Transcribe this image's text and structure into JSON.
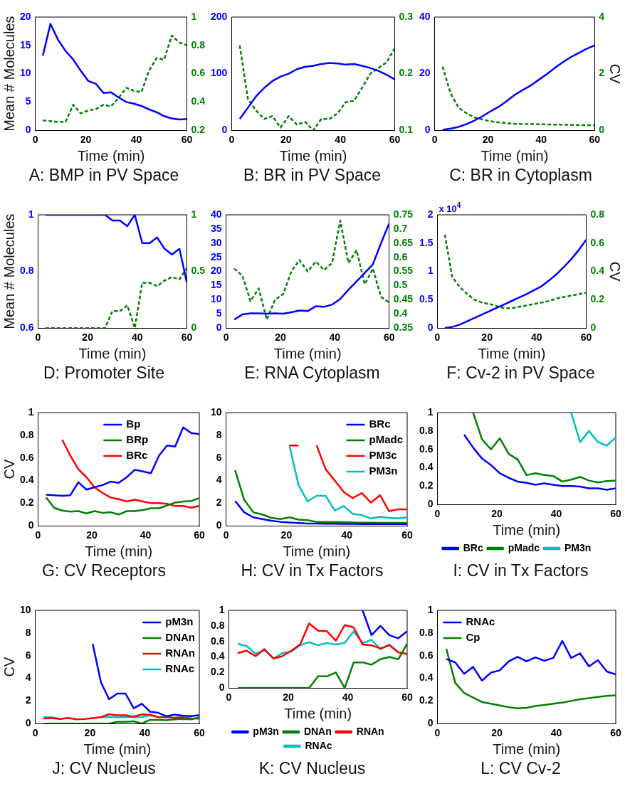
{
  "chart_data": [
    {
      "type": "line",
      "title": "A: BMP in PV Space",
      "xlabel": "Time (min)",
      "ylabel": "Mean # Molecules",
      "x": [
        3,
        6,
        9,
        12,
        15,
        18,
        21,
        24,
        27,
        30,
        33,
        36,
        39,
        42,
        45,
        48,
        51,
        54,
        57,
        60
      ],
      "xlim": [
        0,
        60
      ],
      "xticks": [
        0,
        20,
        40,
        60
      ],
      "ylim": [
        0,
        20
      ],
      "yticks": [
        0,
        5,
        10,
        15,
        20
      ],
      "y2lim": [
        0.2,
        1
      ],
      "y2ticks": [
        0.2,
        0.4,
        0.6,
        0.8,
        1
      ],
      "grid": false,
      "legend": false,
      "series": [
        {
          "color": "#0000ff",
          "values": [
            13.2,
            18.8,
            16,
            14,
            12.5,
            10.5,
            8.7,
            8.2,
            6.6,
            6.7,
            5.8,
            5,
            4.7,
            4.3,
            3.7,
            3.2,
            2.5,
            2.1,
            1.9,
            2.0
          ]
        },
        {
          "color": "#008000",
          "axis": "y2",
          "line_style": "dashed",
          "values": [
            0.27,
            0.265,
            0.26,
            0.26,
            0.38,
            0.32,
            0.34,
            0.35,
            0.38,
            0.37,
            0.43,
            0.5,
            0.48,
            0.47,
            0.62,
            0.71,
            0.7,
            0.87,
            0.82,
            0.8
          ]
        }
      ]
    },
    {
      "type": "line",
      "title": "B: BR  in PV Space",
      "xlabel": "Time (min)",
      "x": [
        3,
        6,
        9,
        12,
        15,
        18,
        21,
        24,
        27,
        30,
        33,
        36,
        39,
        42,
        45,
        48,
        51,
        54,
        57,
        60
      ],
      "xlim": [
        0,
        60
      ],
      "xticks": [
        0,
        20,
        40,
        60
      ],
      "ylim": [
        0,
        200
      ],
      "yticks": [
        0,
        100,
        200
      ],
      "y2lim": [
        0.1,
        0.3
      ],
      "y2ticks": [
        0.1,
        0.2,
        0.3
      ],
      "grid": false,
      "legend": false,
      "series": [
        {
          "color": "#0000ff",
          "values": [
            20,
            40,
            60,
            75,
            87,
            95,
            100,
            108,
            112,
            114,
            117,
            119,
            118,
            116,
            117,
            114,
            110,
            105,
            98,
            90
          ]
        },
        {
          "color": "#008000",
          "axis": "y2",
          "line_style": "dashed",
          "values": [
            0.25,
            0.155,
            0.135,
            0.12,
            0.125,
            0.105,
            0.125,
            0.11,
            0.115,
            0.1,
            0.12,
            0.12,
            0.13,
            0.15,
            0.152,
            0.175,
            0.2,
            0.21,
            0.22,
            0.245
          ]
        }
      ]
    },
    {
      "type": "line",
      "title": "C: BR  in Cytoplasm",
      "xlabel": "Time (min)",
      "y2label": "CV",
      "x": [
        3,
        6,
        9,
        12,
        15,
        18,
        21,
        24,
        27,
        30,
        33,
        36,
        39,
        42,
        45,
        48,
        51,
        54,
        57,
        60
      ],
      "xlim": [
        0,
        60
      ],
      "xticks": [
        0,
        20,
        40,
        60
      ],
      "ylim": [
        0,
        40
      ],
      "yticks": [
        0,
        20,
        40
      ],
      "y2lim": [
        0,
        4
      ],
      "y2ticks": [
        0,
        2,
        4
      ],
      "grid": false,
      "legend": false,
      "series": [
        {
          "color": "#0000ff",
          "values": [
            0.2,
            0.6,
            1.2,
            2.2,
            3.5,
            5,
            6.7,
            8.3,
            10.3,
            12.5,
            14.2,
            15.8,
            17.8,
            19.8,
            22,
            24,
            25.8,
            27.3,
            28.8,
            30
          ]
        },
        {
          "color": "#008000",
          "axis": "y2",
          "line_style": "dashed",
          "values": [
            2.25,
            1.3,
            0.8,
            0.6,
            0.45,
            0.38,
            0.32,
            0.28,
            0.25,
            0.23,
            0.22,
            0.22,
            0.21,
            0.21,
            0.2,
            0.2,
            0.19,
            0.19,
            0.18,
            0.18
          ]
        }
      ]
    },
    {
      "type": "line",
      "title": "D: Promoter Site",
      "xlabel": "Time (min)",
      "ylabel": "Mean # Molecules",
      "x": [
        3,
        6,
        9,
        12,
        15,
        18,
        21,
        24,
        27,
        30,
        33,
        36,
        39,
        42,
        45,
        48,
        51,
        54,
        57,
        60
      ],
      "xlim": [
        0,
        60
      ],
      "xticks": [
        0,
        20,
        40,
        60
      ],
      "ylim": [
        0.6,
        1
      ],
      "yticks": [
        0.6,
        0.8,
        1
      ],
      "y2lim": [
        0,
        1
      ],
      "y2ticks": [
        0,
        0.5,
        1
      ],
      "grid": false,
      "legend": false,
      "series": [
        {
          "color": "#0000ff",
          "values": [
            1,
            1,
            1,
            1,
            1,
            1,
            1,
            1,
            1,
            0.98,
            0.98,
            0.96,
            1,
            0.9,
            0.9,
            0.92,
            0.88,
            0.86,
            0.88,
            0.76
          ]
        },
        {
          "color": "#008000",
          "axis": "y2",
          "line_style": "dashed",
          "values": [
            0,
            0,
            0,
            0,
            0,
            0,
            0,
            0,
            0,
            0.15,
            0.15,
            0.2,
            0,
            0.4,
            0.4,
            0.37,
            0.42,
            0.45,
            0.43,
            0.53
          ]
        }
      ]
    },
    {
      "type": "line",
      "title": "E: RNA Cytoplasm",
      "xlabel": "Time (min)",
      "x": [
        3,
        6,
        9,
        12,
        15,
        18,
        21,
        24,
        27,
        30,
        33,
        36,
        39,
        42,
        45,
        48,
        51,
        54,
        57,
        60
      ],
      "xlim": [
        0,
        60
      ],
      "xticks": [
        0,
        20,
        40,
        60
      ],
      "ylim": [
        0,
        40
      ],
      "yticks": [
        0,
        5,
        10,
        15,
        20,
        25,
        30,
        35,
        40
      ],
      "y2lim": [
        0.35,
        0.75
      ],
      "y2ticks": [
        0.35,
        0.4,
        0.45,
        0.5,
        0.55,
        0.6,
        0.65,
        0.7,
        0.75
      ],
      "grid": false,
      "legend": false,
      "series": [
        {
          "color": "#0000ff",
          "values": [
            3,
            4.8,
            5.2,
            5.2,
            5.1,
            5.2,
            5.1,
            5.6,
            6.2,
            6,
            7.7,
            7.5,
            8.3,
            10.3,
            13.5,
            16.5,
            19.5,
            22.5,
            30,
            37
          ]
        },
        {
          "color": "#008000",
          "axis": "y2",
          "line_style": "dashed",
          "values": [
            0.56,
            0.535,
            0.445,
            0.49,
            0.38,
            0.45,
            0.47,
            0.55,
            0.59,
            0.55,
            0.585,
            0.555,
            0.58,
            0.73,
            0.58,
            0.625,
            0.505,
            0.56,
            0.46,
            0.44
          ]
        }
      ]
    },
    {
      "type": "line",
      "title": "F: Cv-2 in PV Space",
      "xlabel": "Time (min)",
      "y2label": "CV",
      "annotations": [
        "x 10$^{4}$"
      ],
      "x": [
        3,
        6,
        9,
        12,
        15,
        18,
        21,
        24,
        27,
        30,
        33,
        36,
        39,
        42,
        45,
        48,
        51,
        54,
        57,
        60
      ],
      "xlim": [
        0,
        60
      ],
      "xticks": [
        0,
        20,
        40,
        60
      ],
      "ylim": [
        0,
        2
      ],
      "yticks": [
        0,
        0.5,
        1,
        1.5,
        2
      ],
      "y2lim": [
        0,
        0.8
      ],
      "y2ticks": [
        0,
        0.2,
        0.4,
        0.6,
        0.8
      ],
      "grid": false,
      "legend": false,
      "series": [
        {
          "color": "#0000ff",
          "values": [
            0,
            0.02,
            0.06,
            0.12,
            0.18,
            0.24,
            0.3,
            0.36,
            0.42,
            0.48,
            0.54,
            0.6,
            0.67,
            0.74,
            0.84,
            0.95,
            1.08,
            1.22,
            1.38,
            1.56
          ]
        },
        {
          "color": "#008000",
          "axis": "y2",
          "line_style": "dashed",
          "values": [
            0.66,
            0.36,
            0.29,
            0.24,
            0.2,
            0.18,
            0.17,
            0.155,
            0.14,
            0.14,
            0.15,
            0.16,
            0.17,
            0.18,
            0.19,
            0.21,
            0.22,
            0.23,
            0.24,
            0.25
          ]
        }
      ]
    },
    {
      "type": "line",
      "title": "G: CV Receptors",
      "xlabel": "Time (min)",
      "ylabel": "CV",
      "x": [
        3,
        6,
        9,
        12,
        15,
        18,
        21,
        24,
        27,
        30,
        33,
        36,
        39,
        42,
        45,
        48,
        51,
        54,
        57,
        60
      ],
      "xlim": [
        0,
        60
      ],
      "xticks": [
        0,
        20,
        40,
        60
      ],
      "ylim": [
        0,
        1
      ],
      "yticks": [
        0,
        0.2,
        0.4,
        0.6,
        0.8,
        1
      ],
      "grid": false,
      "legend": "top",
      "series": [
        {
          "name": "Bp",
          "color": "#0000ff",
          "values": [
            0.275,
            0.27,
            0.265,
            0.27,
            0.385,
            0.32,
            0.34,
            0.36,
            0.39,
            0.38,
            0.43,
            0.495,
            0.48,
            0.465,
            0.62,
            0.71,
            0.7,
            0.87,
            0.82,
            0.81
          ]
        },
        {
          "name": "BRp",
          "color": "#008000",
          "values": [
            0.25,
            0.16,
            0.135,
            0.125,
            0.13,
            0.11,
            0.13,
            0.115,
            0.12,
            0.1,
            0.13,
            0.13,
            0.14,
            0.155,
            0.155,
            0.18,
            0.205,
            0.215,
            0.22,
            0.245
          ]
        },
        {
          "name": "BRc",
          "color": "#ff0000",
          "values": [
            null,
            null,
            0.76,
            0.62,
            0.5,
            0.43,
            0.34,
            0.29,
            0.25,
            0.235,
            0.215,
            0.23,
            0.215,
            0.2,
            0.2,
            0.195,
            0.175,
            0.175,
            0.16,
            0.175
          ]
        }
      ]
    },
    {
      "type": "line",
      "title": "H: CV in Tx Factors",
      "xlabel": "Time (min)",
      "x": [
        3,
        6,
        9,
        12,
        15,
        18,
        21,
        24,
        27,
        30,
        33,
        36,
        39,
        42,
        45,
        48,
        51,
        54,
        57,
        60
      ],
      "xlim": [
        0,
        60
      ],
      "xticks": [
        0,
        20,
        40,
        60
      ],
      "ylim": [
        0,
        10
      ],
      "yticks": [
        0,
        2,
        4,
        6,
        8,
        10
      ],
      "grid": false,
      "legend": "top right",
      "series": [
        {
          "name": "BRc",
          "color": "#0000ff",
          "values": [
            2.2,
            1.2,
            0.75,
            0.6,
            0.45,
            0.35,
            0.3,
            0.25,
            0.2,
            0.2,
            0.18,
            0.18,
            0.17,
            0.17,
            0.16,
            0.15,
            0.15,
            0.15,
            0.15,
            0.15
          ]
        },
        {
          "name": "pMadc",
          "color": "#008000",
          "values": [
            4.9,
            2.3,
            1.2,
            1.0,
            0.7,
            0.6,
            0.75,
            0.55,
            0.5,
            0.35,
            0.35,
            0.35,
            0.32,
            0.3,
            0.28,
            0.28,
            0.27,
            0.26,
            0.26,
            0.25
          ]
        },
        {
          "name": "PM3c",
          "color": "#ff0000",
          "values": [
            null,
            null,
            null,
            null,
            null,
            null,
            7.1,
            7.1,
            null,
            7.1,
            5,
            4,
            3,
            2.45,
            2.9,
            2.05,
            2.7,
            1.3,
            1.45,
            1.45
          ]
        },
        {
          "name": "PM3n",
          "color": "#00bfbf",
          "values": [
            null,
            null,
            null,
            null,
            null,
            null,
            7.1,
            3.6,
            2.15,
            2.65,
            2.65,
            1.35,
            1.75,
            1.05,
            0.95,
            0.65,
            0.8,
            0.7,
            0.65,
            0.75
          ]
        }
      ]
    },
    {
      "type": "line",
      "title": "I: CV in Tx Factors",
      "xlabel": "Time (min)",
      "xlim": [
        0,
        60
      ],
      "xticks": [
        0,
        20,
        40,
        60
      ],
      "ylim": [
        0,
        1
      ],
      "yticks": [
        0,
        0.2,
        0.4,
        0.6,
        0.8,
        1
      ],
      "grid": false,
      "legend": "bottom",
      "series": [
        {
          "name": "BRc",
          "color": "#0000ff",
          "x": [
            9,
            12,
            15,
            18,
            21,
            24,
            27,
            30,
            33,
            36,
            39,
            42,
            45,
            48,
            51,
            54,
            57,
            60
          ],
          "values": [
            0.76,
            0.62,
            0.5,
            0.43,
            0.34,
            0.29,
            0.25,
            0.235,
            0.215,
            0.23,
            0.215,
            0.2,
            0.2,
            0.195,
            0.175,
            0.175,
            0.16,
            0.175
          ]
        },
        {
          "name": "pMadc",
          "color": "#008000",
          "x": [
            12,
            15,
            18,
            21,
            24,
            27,
            30,
            33,
            36,
            39,
            42,
            45,
            48,
            51,
            54,
            57,
            60
          ],
          "values": [
            1,
            0.71,
            0.6,
            0.72,
            0.55,
            0.49,
            0.32,
            0.34,
            0.32,
            0.31,
            0.25,
            0.27,
            0.3,
            0.26,
            0.24,
            0.255,
            0.26
          ]
        },
        {
          "name": "PM3n",
          "color": "#00bfbf",
          "x": [
            45,
            48,
            51,
            54,
            57,
            60
          ],
          "values": [
            1,
            0.68,
            0.8,
            0.68,
            0.64,
            0.73
          ]
        }
      ]
    },
    {
      "type": "line",
      "title": "J: CV Nucleus",
      "xlabel": "Time (min)",
      "ylabel": "CV",
      "x": [
        3,
        6,
        9,
        12,
        15,
        18,
        21,
        24,
        27,
        30,
        33,
        36,
        39,
        42,
        45,
        48,
        51,
        54,
        57,
        60
      ],
      "xlim": [
        0,
        60
      ],
      "xticks": [
        0,
        20,
        40,
        60
      ],
      "ylim": [
        0,
        10
      ],
      "yticks": [
        0,
        2,
        4,
        6,
        8,
        10
      ],
      "grid": false,
      "legend": "top right",
      "series": [
        {
          "name": "pM3n",
          "color": "#0000ff",
          "values": [
            null,
            null,
            null,
            null,
            null,
            null,
            7.05,
            3.65,
            2.15,
            2.65,
            2.65,
            1.35,
            1.75,
            1.05,
            0.95,
            0.65,
            0.8,
            0.7,
            0.65,
            0.75
          ]
        },
        {
          "name": "DNAn",
          "color": "#008000",
          "values": [
            0,
            0,
            0,
            0,
            0,
            0,
            0,
            0,
            0,
            0.15,
            0.15,
            0.2,
            0,
            0.33,
            0.33,
            0.3,
            0.37,
            0.4,
            0.37,
            0.57
          ]
        },
        {
          "name": "RNAn",
          "color": "#ff0000",
          "values": [
            0.45,
            0.48,
            0.41,
            0.5,
            0.38,
            0.41,
            0.48,
            0.56,
            0.83,
            0.74,
            0.73,
            0.61,
            0.81,
            0.78,
            0.56,
            0.55,
            0.51,
            0.55,
            0.46,
            0.44
          ]
        },
        {
          "name": "RNAc",
          "color": "#00bfbf",
          "values": [
            0.57,
            0.54,
            0.44,
            null,
            null,
            null,
            null,
            0.55,
            0.59,
            0.55,
            0.58,
            0.56,
            0.58,
            0.73,
            0.58,
            0.62,
            0.5,
            0.56,
            null,
            null
          ]
        }
      ]
    },
    {
      "type": "line",
      "title": "K: CV Nucleus",
      "xlabel": "Time (min)",
      "x": [
        3,
        6,
        9,
        12,
        15,
        18,
        21,
        24,
        27,
        30,
        33,
        36,
        39,
        42,
        45,
        48,
        51,
        54,
        57,
        60
      ],
      "xlim": [
        0,
        60
      ],
      "xticks": [
        0,
        20,
        40,
        60
      ],
      "ylim": [
        0,
        1
      ],
      "yticks": [
        0,
        0.2,
        0.4,
        0.6,
        0.8,
        1
      ],
      "grid": false,
      "legend": "bottom",
      "series": [
        {
          "name": "pM3n",
          "color": "#0000ff",
          "values": [
            null,
            null,
            null,
            null,
            null,
            null,
            null,
            null,
            null,
            null,
            null,
            null,
            null,
            null,
            1,
            0.68,
            0.8,
            0.68,
            0.64,
            0.73
          ]
        },
        {
          "name": "DNAn",
          "color": "#008000",
          "values": [
            0,
            0,
            0,
            0,
            0,
            0,
            0,
            0,
            0,
            0.15,
            0.15,
            0.2,
            0,
            0.33,
            0.33,
            0.3,
            0.37,
            0.4,
            0.37,
            0.57
          ]
        },
        {
          "name": "RNAn",
          "color": "#ff0000",
          "values": [
            0.45,
            0.48,
            0.41,
            0.5,
            0.38,
            0.41,
            0.48,
            0.56,
            0.83,
            0.74,
            0.73,
            0.61,
            0.81,
            0.78,
            0.56,
            0.55,
            0.51,
            0.55,
            0.46,
            0.44
          ]
        },
        {
          "name": "RNAc",
          "color": "#00bfbf",
          "values": [
            0.57,
            0.54,
            0.44,
            0.49,
            0.38,
            0.45,
            0.47,
            0.55,
            0.59,
            0.55,
            0.58,
            0.56,
            0.58,
            0.73,
            0.58,
            0.62,
            0.5,
            0.56,
            0.46,
            0.44
          ]
        }
      ]
    },
    {
      "type": "line",
      "title": "L: CV Cv-2",
      "xlabel": "Time (min)",
      "x": [
        3,
        6,
        9,
        12,
        15,
        18,
        21,
        24,
        27,
        30,
        33,
        36,
        39,
        42,
        45,
        48,
        51,
        54,
        57,
        60
      ],
      "xlim": [
        0,
        60
      ],
      "xticks": [
        0,
        20,
        40,
        60
      ],
      "ylim": [
        0,
        1
      ],
      "yticks": [
        0,
        0.2,
        0.4,
        0.6,
        0.8,
        1
      ],
      "grid": false,
      "legend": "top left",
      "series": [
        {
          "name": "RNAc",
          "color": "#0000ff",
          "values": [
            0.57,
            0.54,
            0.44,
            0.5,
            0.38,
            0.45,
            0.47,
            0.55,
            0.59,
            0.55,
            0.585,
            0.555,
            0.58,
            0.73,
            0.58,
            0.62,
            0.505,
            0.56,
            0.46,
            0.435
          ]
        },
        {
          "name": "Cp",
          "color": "#008000",
          "values": [
            0.66,
            0.36,
            0.27,
            0.23,
            0.19,
            0.175,
            0.16,
            0.145,
            0.135,
            0.14,
            0.155,
            0.165,
            0.175,
            0.185,
            0.2,
            0.215,
            0.225,
            0.235,
            0.245,
            0.25
          ]
        }
      ]
    }
  ]
}
